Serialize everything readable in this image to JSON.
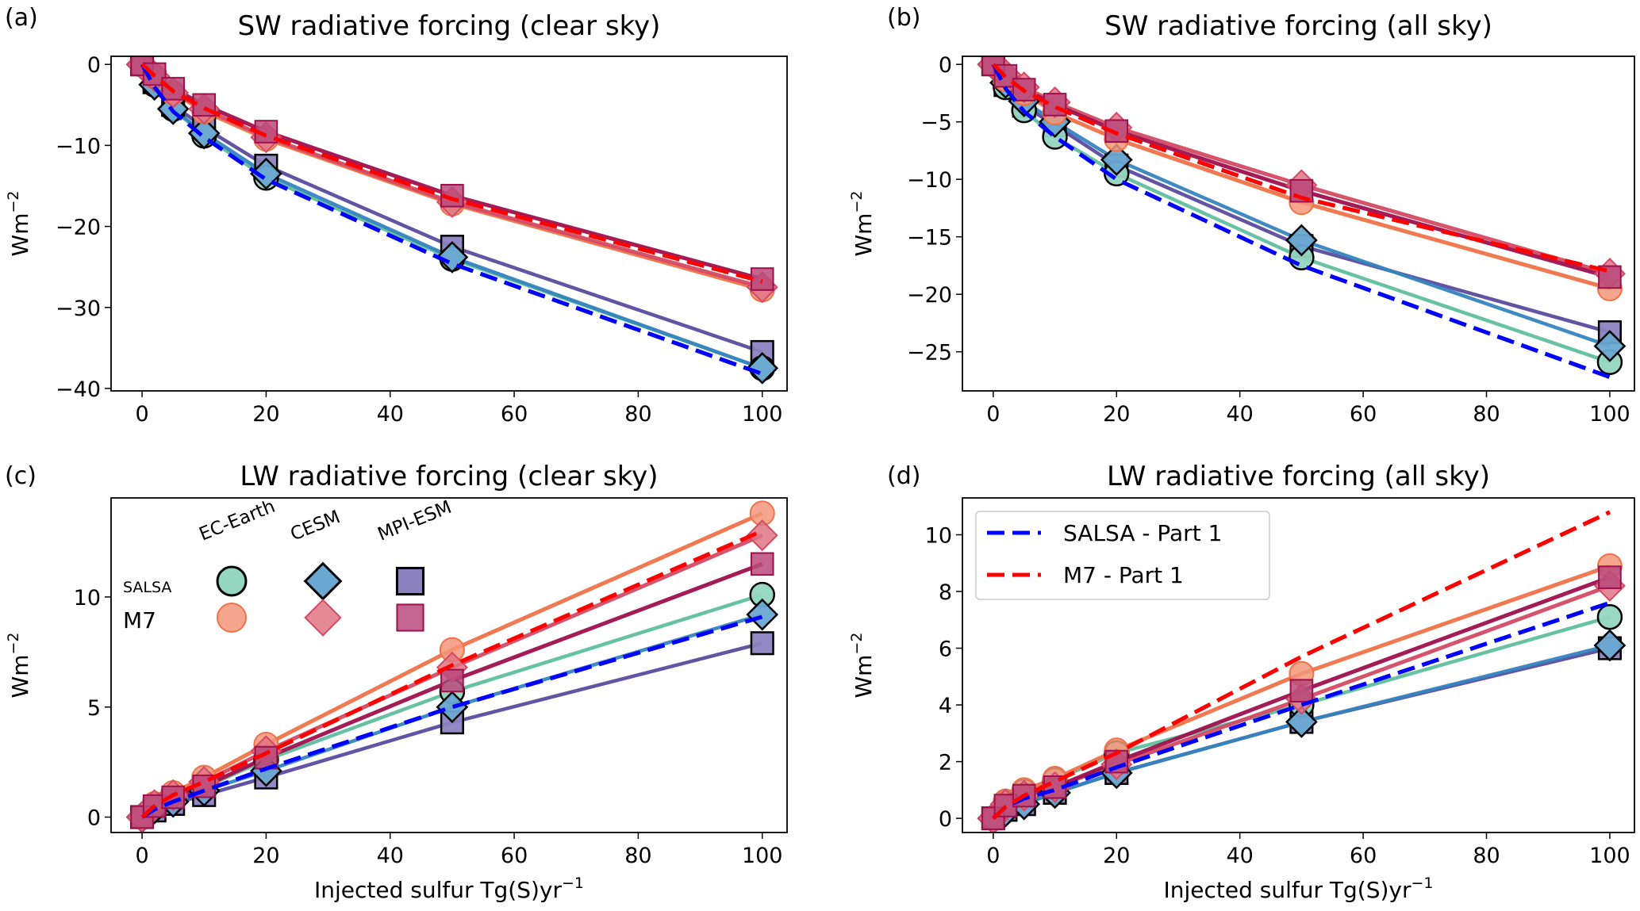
{
  "figure": {
    "xlabel": "Injected sulfur Tg(S)yr",
    "xlabel_sup": "−1",
    "ylabel": "Wm",
    "ylabel_sup": "−2"
  },
  "styles": {
    "salsa_ec": {
      "line": "#5fbf9f",
      "face": "#94d6c0",
      "edge": "#000000",
      "marker": "circle"
    },
    "salsa_cesm": {
      "line": "#3584bf",
      "face": "#6aa8d2",
      "edge": "#000000",
      "marker": "diamond"
    },
    "salsa_mpi": {
      "line": "#5b4a9e",
      "face": "#8c82c0",
      "edge": "#000000",
      "marker": "square"
    },
    "m7_ec": {
      "line": "#f07248",
      "face": "#f4967a",
      "edge": "#f07248",
      "marker": "circle"
    },
    "m7_cesm": {
      "line": "#d44a64",
      "face": "#e07484",
      "edge": "#d44a64",
      "marker": "diamond"
    },
    "m7_mpi": {
      "line": "#9e0f4e",
      "face": "#b84a7a",
      "edge": "#9e0f4e",
      "marker": "square"
    },
    "salsa_part1": {
      "line": "#0000ff",
      "dashed": true
    },
    "m7_part1": {
      "line": "#ff0000",
      "dashed": true
    }
  },
  "inline_legend": {
    "columns": [
      "EC-Earth",
      "CESM",
      "MPI-ESM"
    ],
    "rows": [
      "SALSA",
      "M7"
    ]
  },
  "legend": {
    "entries": [
      {
        "key": "salsa_part1",
        "label": "SALSA - Part 1"
      },
      {
        "key": "m7_part1",
        "label": "M7 - Part 1"
      }
    ]
  },
  "chart_data": [
    {
      "panel": "(a)",
      "type": "line",
      "title": "SW radiative forcing (clear sky)",
      "xlabel": "",
      "ylabel": "Wm−2",
      "xlim": [
        -5,
        104
      ],
      "ylim": [
        -40.3,
        1.0
      ],
      "xticks": [
        0,
        20,
        40,
        60,
        80,
        100
      ],
      "yticks": [
        0,
        -10,
        -20,
        -30,
        -40
      ],
      "ytick_labels": [
        "0",
        "−10",
        "−20",
        "−30",
        "−40"
      ],
      "x": [
        0,
        2,
        5,
        10,
        20,
        50,
        100
      ],
      "series": [
        {
          "key": "salsa_ec",
          "name": "SALSA EC-Earth",
          "values": [
            0,
            -2.5,
            -5.5,
            -8.8,
            -14.0,
            -24.0,
            -37.5
          ]
        },
        {
          "key": "salsa_cesm",
          "name": "SALSA CESM",
          "values": [
            0,
            -2.5,
            -5.5,
            -8.5,
            -13.5,
            -23.8,
            -37.5
          ]
        },
        {
          "key": "salsa_mpi",
          "name": "SALSA MPI-ESM",
          "values": [
            0,
            -2.2,
            -5.0,
            -7.8,
            -12.5,
            -22.5,
            -35.5
          ]
        },
        {
          "key": "m7_ec",
          "name": "M7 EC-Earth",
          "values": [
            0,
            -1.5,
            -3.5,
            -5.8,
            -9.2,
            -17.2,
            -27.8
          ]
        },
        {
          "key": "m7_cesm",
          "name": "M7 CESM",
          "values": [
            0,
            -1.5,
            -3.5,
            -5.5,
            -9.0,
            -17.0,
            -27.5
          ]
        },
        {
          "key": "m7_mpi",
          "name": "M7 MPI-ESM",
          "values": [
            0,
            -1.2,
            -3.0,
            -5.0,
            -8.3,
            -16.2,
            -26.5
          ]
        },
        {
          "key": "salsa_part1",
          "name": "SALSA - Part 1",
          "values": [
            0,
            -2.8,
            -5.8,
            -9.0,
            -14.2,
            -24.6,
            -38.2
          ]
        },
        {
          "key": "m7_part1",
          "name": "M7 - Part 1",
          "values": [
            0,
            -1.4,
            -3.3,
            -5.4,
            -8.8,
            -16.6,
            -26.8
          ]
        }
      ]
    },
    {
      "panel": "(b)",
      "type": "line",
      "title": "SW radiative forcing (all sky)",
      "xlabel": "",
      "ylabel": "Wm−2",
      "xlim": [
        -5,
        104
      ],
      "ylim": [
        -28.4,
        0.7
      ],
      "xticks": [
        0,
        20,
        40,
        60,
        80,
        100
      ],
      "yticks": [
        0,
        -5,
        -10,
        -15,
        -20,
        -25
      ],
      "ytick_labels": [
        "0",
        "−5",
        "−10",
        "−15",
        "−20",
        "−25"
      ],
      "x": [
        0,
        2,
        5,
        10,
        20,
        50,
        100
      ],
      "series": [
        {
          "key": "salsa_ec",
          "name": "SALSA EC-Earth",
          "values": [
            0,
            -2.0,
            -4.0,
            -6.3,
            -9.5,
            -16.8,
            -25.9
          ]
        },
        {
          "key": "salsa_cesm",
          "name": "SALSA CESM",
          "values": [
            0,
            -1.6,
            -3.2,
            -5.0,
            -8.3,
            -15.3,
            -24.5
          ]
        },
        {
          "key": "salsa_mpi",
          "name": "SALSA MPI-ESM",
          "values": [
            0,
            -1.8,
            -3.6,
            -5.3,
            -8.8,
            -15.8,
            -23.3
          ]
        },
        {
          "key": "m7_ec",
          "name": "M7 EC-Earth",
          "values": [
            0,
            -1.3,
            -2.5,
            -4.2,
            -6.5,
            -12.0,
            -19.5
          ]
        },
        {
          "key": "m7_cesm",
          "name": "M7 CESM",
          "values": [
            0,
            -0.9,
            -2.0,
            -3.3,
            -5.5,
            -10.5,
            -18.2
          ]
        },
        {
          "key": "m7_mpi",
          "name": "M7 MPI-ESM",
          "values": [
            0,
            -1.0,
            -2.2,
            -3.5,
            -5.8,
            -11.0,
            -18.5
          ]
        },
        {
          "key": "salsa_part1",
          "name": "SALSA - Part 1",
          "values": [
            0,
            -2.1,
            -4.1,
            -6.3,
            -10.0,
            -17.5,
            -27.2
          ]
        },
        {
          "key": "m7_part1",
          "name": "M7 - Part 1",
          "values": [
            0,
            -1.1,
            -2.3,
            -3.7,
            -6.0,
            -11.6,
            -18.0
          ]
        }
      ]
    },
    {
      "panel": "(c)",
      "type": "line",
      "title": "LW radiative forcing (clear sky)",
      "xlabel": "Injected sulfur Tg(S)yr−1",
      "ylabel": "Wm−2",
      "xlim": [
        -5,
        104
      ],
      "ylim": [
        -0.7,
        14.5
      ],
      "xticks": [
        0,
        20,
        40,
        60,
        80,
        100
      ],
      "yticks": [
        0,
        5,
        10
      ],
      "ytick_labels": [
        "0",
        "5",
        "10"
      ],
      "x": [
        0,
        2,
        5,
        10,
        20,
        50,
        100
      ],
      "series": [
        {
          "key": "salsa_ec",
          "name": "SALSA EC-Earth",
          "values": [
            0,
            0.45,
            0.8,
            1.35,
            2.6,
            5.7,
            10.1
          ]
        },
        {
          "key": "salsa_cesm",
          "name": "SALSA CESM",
          "values": [
            0,
            0.4,
            0.7,
            1.2,
            2.1,
            5.0,
            9.2
          ]
        },
        {
          "key": "salsa_mpi",
          "name": "SALSA MPI-ESM",
          "values": [
            0,
            0.3,
            0.6,
            1.0,
            1.8,
            4.3,
            7.9
          ]
        },
        {
          "key": "m7_ec",
          "name": "M7 EC-Earth",
          "values": [
            0,
            0.6,
            1.1,
            1.8,
            3.3,
            7.6,
            13.8
          ]
        },
        {
          "key": "m7_cesm",
          "name": "M7 CESM",
          "values": [
            0,
            0.55,
            1.0,
            1.6,
            3.0,
            6.8,
            12.8
          ]
        },
        {
          "key": "m7_mpi",
          "name": "M7 MPI-ESM",
          "values": [
            0,
            0.5,
            0.9,
            1.4,
            2.7,
            6.2,
            11.5
          ]
        },
        {
          "key": "salsa_part1",
          "name": "SALSA - Part 1",
          "values": [
            0,
            0.35,
            0.7,
            1.2,
            2.2,
            5.0,
            9.1
          ]
        },
        {
          "key": "m7_part1",
          "name": "M7 - Part 1",
          "values": [
            0,
            0.5,
            1.0,
            1.6,
            2.9,
            6.9,
            13.0
          ]
        }
      ]
    },
    {
      "panel": "(d)",
      "type": "line",
      "title": "LW radiative forcing (all sky)",
      "xlabel": "Injected sulfur Tg(S)yr−1",
      "ylabel": "Wm−2",
      "xlim": [
        -5,
        104
      ],
      "ylim": [
        -0.5,
        11.3
      ],
      "xticks": [
        0,
        20,
        40,
        60,
        80,
        100
      ],
      "yticks": [
        0,
        2,
        4,
        6,
        8,
        10
      ],
      "ytick_labels": [
        "0",
        "2",
        "4",
        "6",
        "8",
        "10"
      ],
      "legend_position": "upper-left",
      "x": [
        0,
        2,
        5,
        10,
        20,
        50,
        100
      ],
      "series": [
        {
          "key": "salsa_ec",
          "name": "SALSA EC-Earth",
          "values": [
            0,
            0.55,
            0.95,
            1.35,
            2.3,
            4.0,
            7.1
          ]
        },
        {
          "key": "salsa_cesm",
          "name": "SALSA CESM",
          "values": [
            0,
            0.25,
            0.5,
            0.9,
            1.6,
            3.4,
            6.1
          ]
        },
        {
          "key": "salsa_mpi",
          "name": "SALSA MPI-ESM",
          "values": [
            0,
            0.3,
            0.5,
            0.9,
            1.6,
            3.4,
            6.0
          ]
        },
        {
          "key": "m7_ec",
          "name": "M7 EC-Earth",
          "values": [
            0,
            0.6,
            1.0,
            1.4,
            2.4,
            5.1,
            8.9
          ]
        },
        {
          "key": "m7_cesm",
          "name": "M7 CESM",
          "values": [
            0,
            0.5,
            0.8,
            1.1,
            1.9,
            4.2,
            8.2
          ]
        },
        {
          "key": "m7_mpi",
          "name": "M7 MPI-ESM",
          "values": [
            0,
            0.45,
            0.8,
            1.1,
            2.0,
            4.5,
            8.5
          ]
        },
        {
          "key": "salsa_part1",
          "name": "SALSA - Part 1",
          "values": [
            0,
            0.4,
            0.7,
            1.0,
            1.8,
            4.0,
            7.6
          ]
        },
        {
          "key": "m7_part1",
          "name": "M7 - Part 1",
          "values": [
            0,
            0.4,
            0.8,
            1.3,
            2.3,
            5.7,
            10.8
          ]
        }
      ]
    }
  ]
}
